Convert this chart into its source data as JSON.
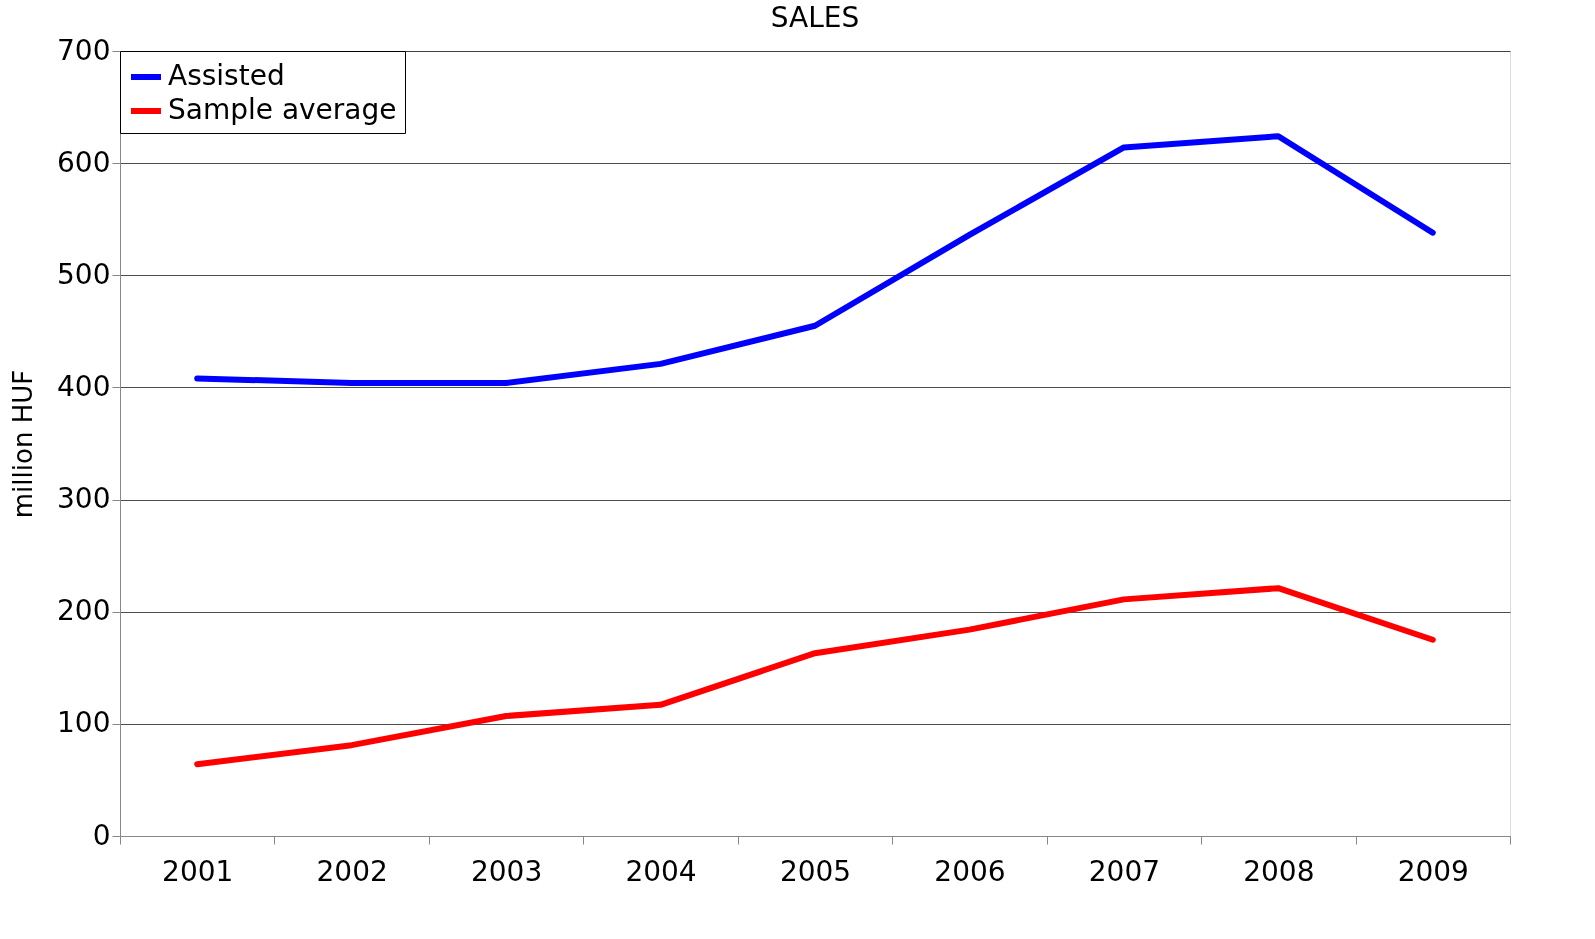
{
  "chart_data": {
    "type": "line",
    "title": "SALES",
    "ylabel": "million HUF",
    "categories": [
      "2001",
      "2002",
      "2003",
      "2004",
      "2005",
      "2006",
      "2007",
      "2008",
      "2009"
    ],
    "series": [
      {
        "name": "Assisted",
        "color": "#0000ff",
        "values": [
          408,
          404,
          404,
          421,
          455,
          536,
          614,
          624,
          538
        ]
      },
      {
        "name": "Sample average",
        "color": "#ff0000",
        "values": [
          64,
          81,
          107,
          117,
          163,
          184,
          211,
          221,
          175
        ]
      }
    ],
    "ylim": [
      0,
      700
    ],
    "yticks": [
      0,
      100,
      200,
      300,
      400,
      500,
      600,
      700
    ],
    "grid": "y",
    "legend": "top left",
    "marker": "none",
    "line_style": "solid"
  }
}
